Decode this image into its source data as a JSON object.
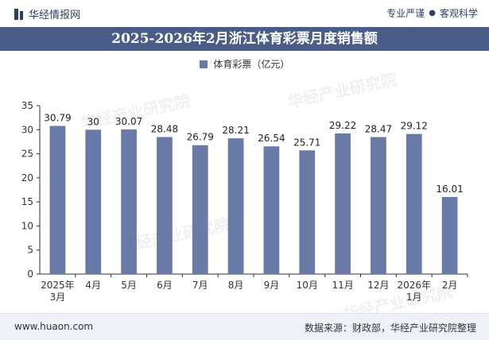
{
  "header": {
    "brand": "华经情报网",
    "slogan_left": "专业严谨",
    "slogan_sep": "●",
    "slogan_right": "客观科学"
  },
  "footer": {
    "site": "www.huaon.com",
    "source": "数据来源：财政部，华经产业研究院整理"
  },
  "watermark": "华经产业研究院",
  "colors": {
    "bar": "#6a7aa6",
    "title_bg": "#4a5d88",
    "axis": "#333333"
  },
  "chart_data": {
    "type": "bar",
    "title": "2025-2026年2月浙江体育彩票月度销售额",
    "categories": [
      "2025年3月",
      "4月",
      "5月",
      "6月",
      "7月",
      "8月",
      "9月",
      "10月",
      "11月",
      "12月",
      "2026年1月",
      "2月"
    ],
    "series": [
      {
        "name": "体育彩票（亿元）",
        "values": [
          30.79,
          30,
          30.07,
          28.48,
          26.79,
          28.21,
          26.54,
          25.71,
          29.22,
          28.47,
          29.12,
          16.01
        ]
      }
    ],
    "data_labels": [
      "30.79",
      "30",
      "30.07",
      "28.48",
      "26.79",
      "28.21",
      "26.54",
      "25.71",
      "29.22",
      "28.47",
      "29.12",
      "16.01"
    ],
    "ylim": [
      0,
      35
    ],
    "yticks": [
      0,
      5,
      10,
      15,
      20,
      25,
      30,
      35
    ],
    "grid": false,
    "legend": "top-center"
  }
}
